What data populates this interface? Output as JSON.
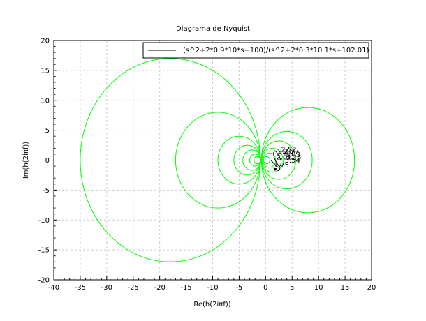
{
  "chart_data": {
    "type": "line",
    "title": "Diagrama de Nyquist",
    "xlabel": "Re(h(2iπf))",
    "ylabel": "Im(h(2iπf))",
    "xlim": [
      -40,
      20
    ],
    "ylim": [
      -20,
      20
    ],
    "xticks": [
      "-40",
      "-35",
      "-30",
      "-25",
      "-20",
      "-15",
      "-10",
      "-5",
      "0",
      "5",
      "10",
      "15",
      "20"
    ],
    "yticks": [
      "20",
      "15",
      "10",
      "5",
      "0",
      "-5",
      "-10",
      "-15",
      "-20"
    ],
    "grid": true,
    "legend": {
      "position": "top-right",
      "label": "(s^2+2*0.9*10*s+100)/(s^2+2*0.3*10.1*s+102.01)"
    },
    "colors": {
      "line": "#000000",
      "circles": "#00ff00",
      "grid": "#cccccc"
    },
    "series": [
      {
        "name": "(s^2+2*0.9*10*s+100)/(s^2+2*0.3*10.1*s+102.01)",
        "x": [
          1.0,
          1.3,
          1.8,
          2.4,
          2.85,
          2.95,
          2.6,
          2.1,
          1.7,
          1.5,
          1.6,
          2.05,
          2.5,
          2.7,
          2.4,
          1.9,
          1.5
        ],
        "y": [
          0,
          -0.3,
          -0.85,
          -1.2,
          -0.9,
          -0.2,
          0.6,
          1.3,
          1.6,
          1.2,
          0.4,
          -0.4,
          -1.0,
          -1.6,
          -1.75,
          -1.55,
          -1.3
        ]
      }
    ],
    "hall_circles": [
      {
        "cx": -18.0,
        "r": 17.0
      },
      {
        "cx": -9.0,
        "r": 8.0
      },
      {
        "cx": -5.0,
        "r": 4.0
      },
      {
        "cx": -3.5,
        "r": 2.5
      },
      {
        "cx": -2.6,
        "r": 1.7
      },
      {
        "cx": -2.0,
        "r": 1.0
      },
      {
        "cx": -1.6,
        "r": 0.6
      },
      {
        "cx": 8.0,
        "r": 8.8
      },
      {
        "cx": 4.0,
        "r": 4.8
      },
      {
        "cx": 2.5,
        "r": 3.2
      },
      {
        "cx": 1.3,
        "r": 2.0
      },
      {
        "cx": 0.7,
        "r": 1.2
      },
      {
        "cx": 0.2,
        "r": 0.6
      }
    ],
    "point_labels": [
      {
        "text": "2.01",
        "x": 2.0,
        "y": 0.1
      },
      {
        "text": "2.26",
        "x": 2.3,
        "y": 1.1
      },
      {
        "text": "2.52",
        "x": 2.9,
        "y": 1.4
      },
      {
        "text": "2.77",
        "x": 3.4,
        "y": 1.1
      },
      {
        "text": "3.03",
        "x": 3.6,
        "y": 0.6
      },
      {
        "text": "3.28",
        "x": 3.8,
        "y": 0.1
      },
      {
        "text": "3.54",
        "x": 3.6,
        "y": -0.4
      },
      {
        "text": "1.75",
        "x": 1.5,
        "y": -1.2
      }
    ]
  }
}
